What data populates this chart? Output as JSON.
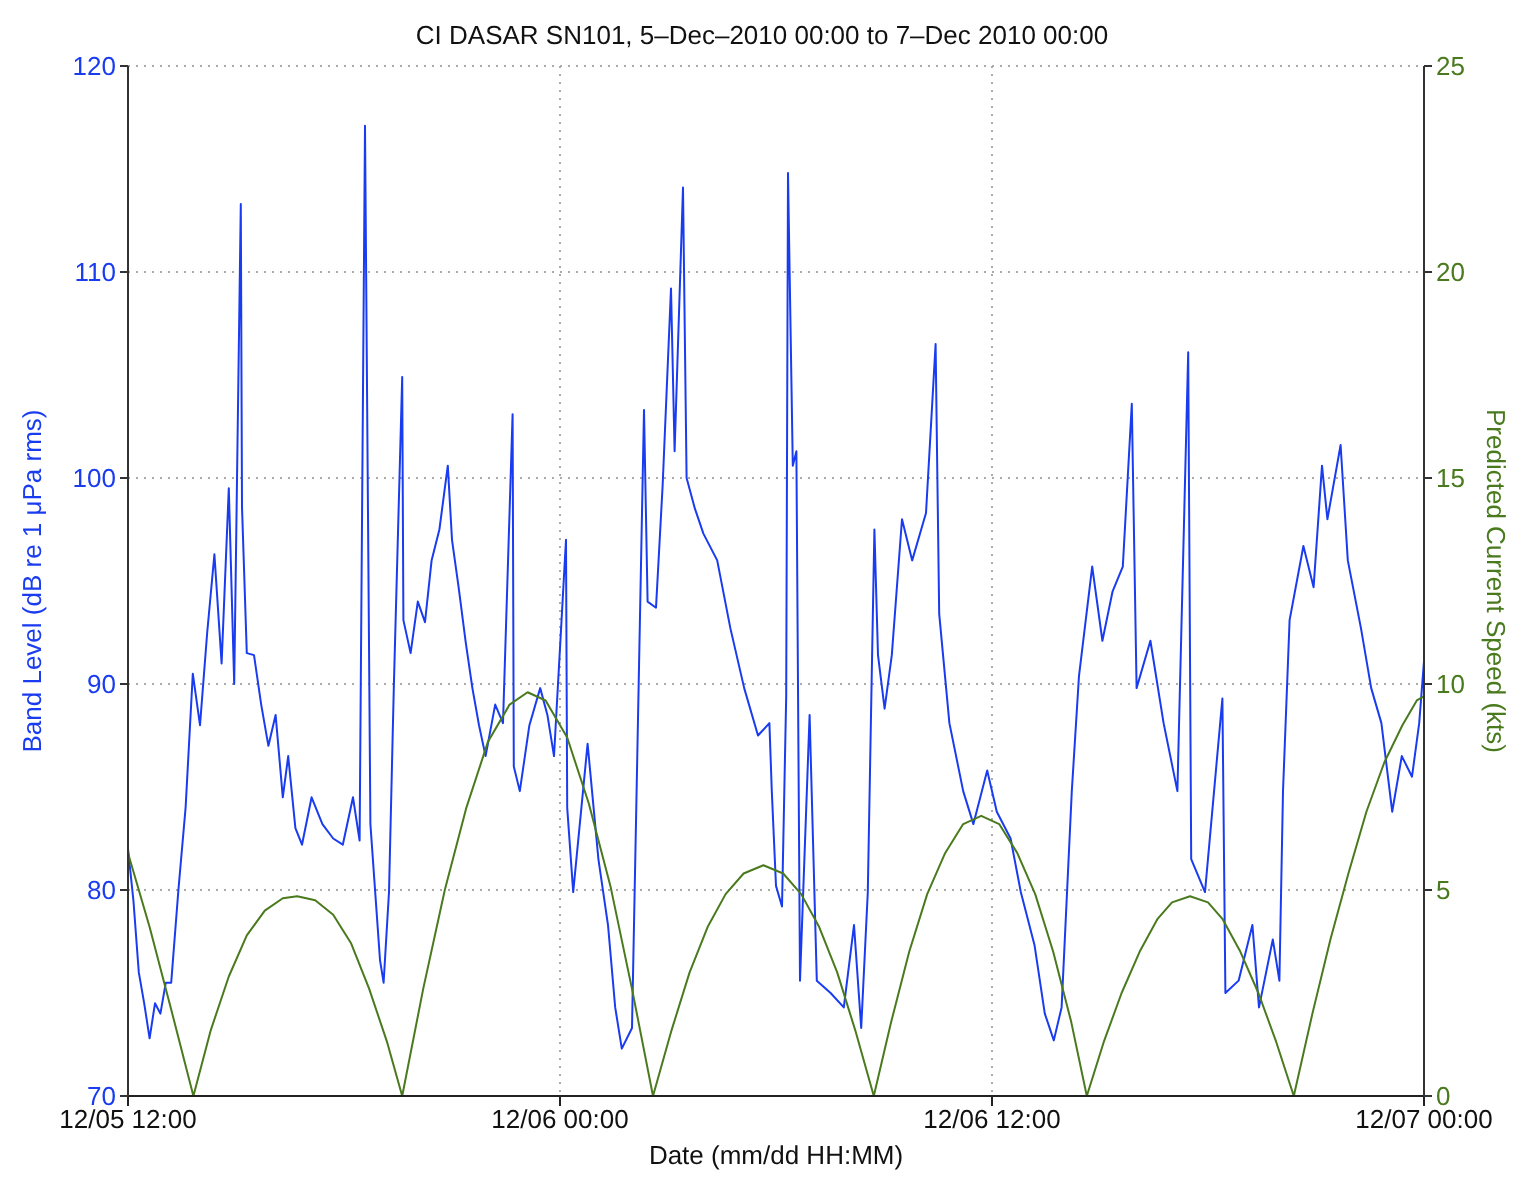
{
  "chart_data": {
    "type": "line",
    "title": "CI DASAR SN101, 5–Dec–2010 00:00 to 7–Dec 2010 00:00",
    "xlabel": "Date (mm/dd HH:MM)",
    "ylabel": "Band Level (dB re 1 μPa rms)",
    "y2label": "Predicted Current Speed (kts)",
    "xlim": [
      "2010-12-05T12:00",
      "2010-12-07T00:00"
    ],
    "xticks": [
      {
        "value": "2010-12-05T12:00",
        "label": "12/05 12:00"
      },
      {
        "value": "2010-12-06T00:00",
        "label": "12/06 00:00"
      },
      {
        "value": "2010-12-06T12:00",
        "label": "12/06 12:00"
      },
      {
        "value": "2010-12-07T00:00",
        "label": "12/07 00:00"
      }
    ],
    "ylim": [
      70,
      120
    ],
    "yticks": [
      70,
      80,
      90,
      100,
      110,
      120
    ],
    "y2lim": [
      0,
      25
    ],
    "y2ticks": [
      0,
      5,
      10,
      15,
      20,
      25
    ],
    "grid": true,
    "series": [
      {
        "color": "#1a3cf0",
        "axis": "y",
        "x": [
          "2010-12-05T12:00",
          "2010-12-05T12:09",
          "2010-12-05T12:18",
          "2010-12-05T12:27",
          "2010-12-05T12:36",
          "2010-12-05T12:45",
          "2010-12-05T12:54",
          "2010-12-05T13:03",
          "2010-12-05T13:12",
          "2010-12-05T13:24",
          "2010-12-05T13:36",
          "2010-12-05T13:48",
          "2010-12-05T14:00",
          "2010-12-05T14:12",
          "2010-12-05T14:24",
          "2010-12-05T14:36",
          "2010-12-05T14:48",
          "2010-12-05T14:57",
          "2010-12-05T15:08",
          "2010-12-05T15:10",
          "2010-12-05T15:18",
          "2010-12-05T15:30",
          "2010-12-05T15:42",
          "2010-12-05T15:54",
          "2010-12-05T16:06",
          "2010-12-05T16:18",
          "2010-12-05T16:27",
          "2010-12-05T16:39",
          "2010-12-05T16:50",
          "2010-12-05T17:06",
          "2010-12-05T17:24",
          "2010-12-05T17:42",
          "2010-12-05T17:58",
          "2010-12-05T18:15",
          "2010-12-05T18:26",
          "2010-12-05T18:35",
          "2010-12-05T18:44",
          "2010-12-05T19:00",
          "2010-12-05T19:06",
          "2010-12-05T19:15",
          "2010-12-05T19:23",
          "2010-12-05T19:37",
          "2010-12-05T19:39",
          "2010-12-05T19:51",
          "2010-12-05T20:03",
          "2010-12-05T20:15",
          "2010-12-05T20:26",
          "2010-12-05T20:39",
          "2010-12-05T20:53",
          "2010-12-05T21:00",
          "2010-12-05T21:11",
          "2010-12-05T21:23",
          "2010-12-05T21:34",
          "2010-12-05T21:45",
          "2010-12-05T21:56",
          "2010-12-05T22:12",
          "2010-12-05T22:25",
          "2010-12-05T22:41",
          "2010-12-05T22:43",
          "2010-12-05T22:53",
          "2010-12-05T23:09",
          "2010-12-05T23:27",
          "2010-12-05T23:39",
          "2010-12-05T23:50",
          "2010-12-06T00:10",
          "2010-12-06T00:12",
          "2010-12-06T00:22",
          "2010-12-06T00:46",
          "2010-12-06T01:04",
          "2010-12-06T01:20",
          "2010-12-06T01:32",
          "2010-12-06T01:43",
          "2010-12-06T02:00",
          "2010-12-06T02:20",
          "2010-12-06T02:26",
          "2010-12-06T02:40",
          "2010-12-06T02:51",
          "2010-12-06T03:05",
          "2010-12-06T03:11",
          "2010-12-06T03:25",
          "2010-12-06T03:31",
          "2010-12-06T03:45",
          "2010-12-06T03:59",
          "2010-12-06T04:22",
          "2010-12-06T04:44",
          "2010-12-06T05:07",
          "2010-12-06T05:30",
          "2010-12-06T05:49",
          "2010-12-06T05:53",
          "2010-12-06T06:00",
          "2010-12-06T06:10",
          "2010-12-06T06:17",
          "2010-12-06T06:20",
          "2010-12-06T06:28",
          "2010-12-06T06:34",
          "2010-12-06T06:40",
          "2010-12-06T06:56",
          "2010-12-06T07:08",
          "2010-12-06T07:31",
          "2010-12-06T07:53",
          "2010-12-06T08:10",
          "2010-12-06T08:22",
          "2010-12-06T08:33",
          "2010-12-06T08:44",
          "2010-12-06T08:50",
          "2010-12-06T09:01",
          "2010-12-06T09:13",
          "2010-12-06T09:30",
          "2010-12-06T09:47",
          "2010-12-06T10:10",
          "2010-12-06T10:26",
          "2010-12-06T10:32",
          "2010-12-06T10:49",
          "2010-12-06T11:12",
          "2010-12-06T11:29",
          "2010-12-06T11:52",
          "2010-12-06T12:08",
          "2010-12-06T12:31",
          "2010-12-06T12:48",
          "2010-12-06T13:11",
          "2010-12-06T13:28",
          "2010-12-06T13:43",
          "2010-12-06T13:56",
          "2010-12-06T14:13",
          "2010-12-06T14:25",
          "2010-12-06T14:47",
          "2010-12-06T15:04",
          "2010-12-06T15:21",
          "2010-12-06T15:38",
          "2010-12-06T15:53",
          "2010-12-06T16:01",
          "2010-12-06T16:24",
          "2010-12-06T16:46",
          "2010-12-06T17:09",
          "2010-12-06T17:27",
          "2010-12-06T17:32",
          "2010-12-06T17:55",
          "2010-12-06T18:24",
          "2010-12-06T18:29",
          "2010-12-06T18:51",
          "2010-12-06T19:14",
          "2010-12-06T19:25",
          "2010-12-06T19:48",
          "2010-12-06T19:59",
          "2010-12-06T20:05",
          "2010-12-06T20:16",
          "2010-12-06T20:39",
          "2010-12-06T20:56",
          "2010-12-06T21:10",
          "2010-12-06T21:19",
          "2010-12-06T21:41",
          "2010-12-06T21:53",
          "2010-12-06T22:15",
          "2010-12-06T22:32",
          "2010-12-06T22:49",
          "2010-12-06T23:07",
          "2010-12-06T23:23",
          "2010-12-06T23:40",
          "2010-12-06T23:52",
          "2010-12-07T00:00"
        ],
        "values": [
          82.0,
          79.5,
          76.0,
          74.5,
          72.8,
          74.5,
          74.0,
          75.5,
          75.5,
          80.0,
          84.0,
          90.5,
          88.0,
          92.5,
          96.3,
          91.0,
          99.5,
          90.0,
          113.3,
          98.6,
          91.5,
          91.4,
          89.0,
          87.0,
          88.5,
          84.5,
          86.5,
          83.0,
          82.2,
          84.5,
          83.2,
          82.5,
          82.2,
          84.5,
          82.4,
          117.1,
          83.2,
          76.6,
          75.5,
          79.9,
          89.8,
          104.9,
          93.1,
          91.5,
          94.0,
          93.0,
          96.0,
          97.5,
          100.6,
          97.0,
          94.7,
          92.0,
          89.8,
          88.0,
          86.5,
          89.0,
          88.1,
          103.1,
          86.0,
          84.8,
          88.0,
          89.8,
          88.5,
          86.5,
          97.0,
          84.0,
          79.9,
          87.1,
          81.5,
          78.3,
          74.3,
          72.3,
          73.3,
          103.3,
          94.0,
          93.7,
          99.6,
          109.2,
          101.3,
          114.1,
          100.0,
          98.5,
          97.3,
          96.0,
          92.7,
          89.8,
          87.5,
          88.1,
          84.8,
          80.2,
          79.2,
          89.4,
          114.8,
          100.6,
          101.3,
          75.6,
          88.5,
          75.6,
          75.0,
          74.3,
          78.3,
          73.3,
          79.9,
          97.5,
          91.4,
          88.8,
          91.4,
          98.0,
          96.0,
          98.3,
          106.5,
          93.4,
          88.1,
          84.8,
          83.2,
          85.8,
          83.8,
          82.5,
          79.9,
          77.3,
          74.0,
          72.7,
          74.3,
          84.8,
          90.4,
          95.7,
          92.1,
          94.5,
          95.7,
          103.6,
          89.8,
          92.1,
          88.1,
          84.8,
          106.1,
          81.5,
          79.9,
          89.3,
          75.0,
          75.6,
          78.3,
          74.3,
          77.6,
          75.6,
          84.8,
          93.1,
          96.7,
          94.7,
          100.6,
          98.0,
          101.6,
          96.0,
          92.7,
          89.8,
          88.1,
          83.8,
          86.5,
          85.5,
          88.1,
          91.1
        ]
      },
      {
        "color": "#4a7a1e",
        "axis": "y2",
        "x": [
          "2010-12-05T12:00",
          "2010-12-05T12:36",
          "2010-12-05T13:12",
          "2010-12-05T13:49",
          "2010-12-05T14:18",
          "2010-12-05T14:48",
          "2010-12-05T15:18",
          "2010-12-05T15:48",
          "2010-12-05T16:18",
          "2010-12-05T16:42",
          "2010-12-05T17:12",
          "2010-12-05T17:42",
          "2010-12-05T18:12",
          "2010-12-05T18:42",
          "2010-12-05T19:12",
          "2010-12-05T19:37",
          "2010-12-05T20:12",
          "2010-12-05T20:48",
          "2010-12-05T21:24",
          "2010-12-05T22:00",
          "2010-12-05T22:36",
          "2010-12-05T23:06",
          "2010-12-05T23:36",
          "2010-12-06T00:12",
          "2010-12-06T00:48",
          "2010-12-06T01:24",
          "2010-12-06T02:00",
          "2010-12-06T02:35",
          "2010-12-06T03:06",
          "2010-12-06T03:36",
          "2010-12-06T04:06",
          "2010-12-06T04:36",
          "2010-12-06T05:06",
          "2010-12-06T05:39",
          "2010-12-06T06:12",
          "2010-12-06T06:42",
          "2010-12-06T07:12",
          "2010-12-06T07:42",
          "2010-12-06T08:12",
          "2010-12-06T08:43",
          "2010-12-06T09:12",
          "2010-12-06T09:42",
          "2010-12-06T10:12",
          "2010-12-06T10:42",
          "2010-12-06T11:12",
          "2010-12-06T11:42",
          "2010-12-06T12:12",
          "2010-12-06T12:42",
          "2010-12-06T13:12",
          "2010-12-06T13:42",
          "2010-12-06T14:12",
          "2010-12-06T14:38",
          "2010-12-06T15:06",
          "2010-12-06T15:36",
          "2010-12-06T16:06",
          "2010-12-06T16:36",
          "2010-12-06T17:00",
          "2010-12-06T17:30",
          "2010-12-06T18:00",
          "2010-12-06T18:24",
          "2010-12-06T18:54",
          "2010-12-06T19:24",
          "2010-12-06T19:54",
          "2010-12-06T20:23",
          "2010-12-06T20:54",
          "2010-12-06T21:24",
          "2010-12-06T21:54",
          "2010-12-06T22:24",
          "2010-12-06T22:54",
          "2010-12-06T23:24",
          "2010-12-06T23:48",
          "2010-12-07T00:00"
        ],
        "values": [
          5.9,
          4.1,
          2.1,
          0,
          1.6,
          2.9,
          3.9,
          4.5,
          4.8,
          4.85,
          4.75,
          4.4,
          3.7,
          2.6,
          1.3,
          0,
          2.6,
          5.0,
          7.0,
          8.6,
          9.5,
          9.8,
          9.6,
          8.7,
          7.1,
          5.1,
          2.6,
          0,
          1.6,
          3.0,
          4.1,
          4.9,
          5.4,
          5.6,
          5.4,
          4.9,
          4.1,
          3.0,
          1.6,
          0,
          1.8,
          3.5,
          4.9,
          5.9,
          6.6,
          6.8,
          6.6,
          5.9,
          4.9,
          3.5,
          1.8,
          0,
          1.3,
          2.5,
          3.5,
          4.3,
          4.7,
          4.85,
          4.7,
          4.3,
          3.5,
          2.5,
          1.3,
          0,
          2.0,
          3.8,
          5.4,
          6.9,
          8.1,
          9.0,
          9.6,
          9.7
        ]
      }
    ]
  }
}
